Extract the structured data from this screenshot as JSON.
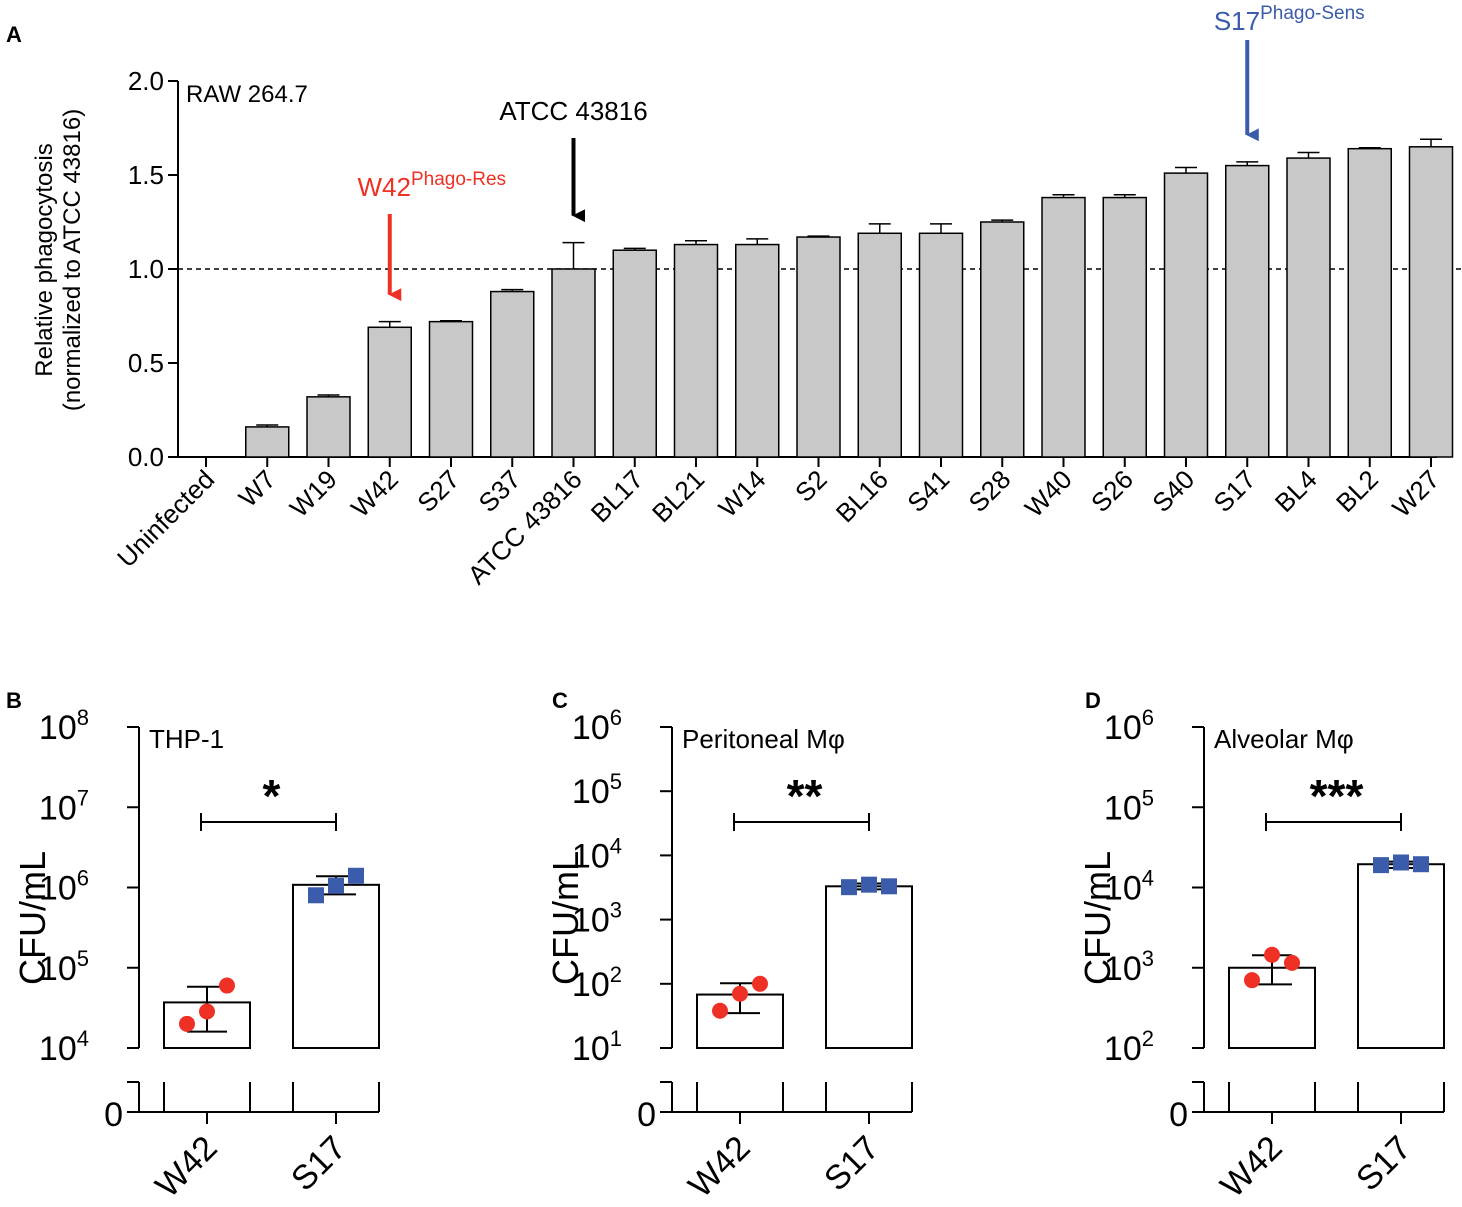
{
  "chart_data": [
    {
      "panel": "A",
      "type": "bar",
      "title": "RAW 264.7",
      "ylabel_line1": "Relative phagocytosis",
      "ylabel_line2": "(normalized to ATCC 43816)",
      "ylim": [
        0,
        2.0
      ],
      "yticks": [
        "0.0",
        "0.5",
        "1.0",
        "1.5",
        "2.0"
      ],
      "reference_line": 1.0,
      "bar_color": "#c8c8c8",
      "categories": [
        "Uninfected",
        "W7",
        "W19",
        "W42",
        "S27",
        "S37",
        "ATCC 43816",
        "BL17",
        "BL21",
        "W14",
        "S2",
        "BL16",
        "S41",
        "S28",
        "W40",
        "S26",
        "S40",
        "S17",
        "BL4",
        "BL2",
        "W27"
      ],
      "values": [
        0,
        0.16,
        0.32,
        0.69,
        0.72,
        0.88,
        1.0,
        1.1,
        1.13,
        1.13,
        1.17,
        1.19,
        1.19,
        1.25,
        1.38,
        1.38,
        1.51,
        1.55,
        1.59,
        1.64,
        1.65
      ],
      "errors": [
        0,
        0.01,
        0.01,
        0.03,
        0.005,
        0.01,
        0.14,
        0.01,
        0.02,
        0.03,
        0.005,
        0.05,
        0.05,
        0.01,
        0.015,
        0.015,
        0.03,
        0.02,
        0.03,
        0.005,
        0.04
      ],
      "annotations": [
        {
          "category": "W42",
          "text": "W42",
          "superscript": "Phago-Res",
          "color": "#ee3124"
        },
        {
          "category": "ATCC 43816",
          "text": "ATCC 43816",
          "superscript": "",
          "color": "#000000"
        },
        {
          "category": "S17",
          "text": "S17",
          "superscript": "Phago-Sens",
          "color": "#3b5bab"
        }
      ]
    },
    {
      "panel": "B",
      "type": "bar",
      "yscale": "log",
      "title": "THP-1",
      "ylabel": "CFU/mL",
      "ylim_log10": [
        4,
        8
      ],
      "yticks": [
        "10^4",
        "10^5",
        "10^6",
        "10^7",
        "10^8"
      ],
      "categories": [
        "W42",
        "S17"
      ],
      "values": [
        37000.0,
        1080000.0
      ],
      "error_low": [
        16000.0,
        820000.0
      ],
      "error_high": [
        58000.0,
        1380000.0
      ],
      "points": [
        [
          20000.0,
          28500.0,
          60000.0
        ],
        [
          800000.0,
          1050000.0,
          1400000.0
        ]
      ],
      "significance": "*",
      "point_colors": [
        "#ee3124",
        "#3b5bab"
      ],
      "break_zero_label": "0"
    },
    {
      "panel": "C",
      "type": "bar",
      "yscale": "log",
      "title": "Peritoneal Mφ",
      "ylabel": "CFU/mL",
      "ylim_log10": [
        1,
        6
      ],
      "yticks": [
        "10^1",
        "10^2",
        "10^3",
        "10^4",
        "10^5",
        "10^6"
      ],
      "categories": [
        "W42",
        "S17"
      ],
      "values": [
        68,
        3300
      ],
      "error_low": [
        35,
        2950
      ],
      "error_high": [
        102,
        3650
      ],
      "points": [
        [
          38,
          70,
          100
        ],
        [
          3200,
          3500,
          3300
        ]
      ],
      "significance": "**",
      "point_colors": [
        "#ee3124",
        "#3b5bab"
      ],
      "break_zero_label": "0"
    },
    {
      "panel": "D",
      "type": "bar",
      "yscale": "log",
      "title": "Alveolar Mφ",
      "ylabel": "CFU/mL",
      "ylim_log10": [
        2,
        6
      ],
      "yticks": [
        "10^2",
        "10^3",
        "10^4",
        "10^5",
        "10^6"
      ],
      "categories": [
        "W42",
        "S17"
      ],
      "values": [
        1000,
        19500
      ],
      "error_low": [
        620,
        17500
      ],
      "error_high": [
        1430,
        21000
      ],
      "points": [
        [
          700,
          1450,
          1150
        ],
        [
          19000,
          20500,
          19500
        ]
      ],
      "significance": "***",
      "point_colors": [
        "#ee3124",
        "#3b5bab"
      ],
      "break_zero_label": "0"
    }
  ]
}
